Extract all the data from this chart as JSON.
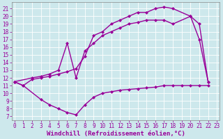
{
  "background_color": "#cde8ec",
  "grid_color": "#ffffff",
  "line_color": "#990099",
  "markersize": 2.5,
  "linewidth": 1.0,
  "xlabel": "Windchill (Refroidissement éolien,°C)",
  "xlabel_fontsize": 6.5,
  "xticks": [
    0,
    1,
    2,
    3,
    4,
    5,
    6,
    7,
    8,
    9,
    10,
    11,
    12,
    13,
    14,
    15,
    16,
    17,
    18,
    19,
    20,
    21,
    22,
    23
  ],
  "yticks": [
    7,
    8,
    9,
    10,
    11,
    12,
    13,
    14,
    15,
    16,
    17,
    18,
    19,
    20,
    21
  ],
  "ylim": [
    6.5,
    21.8
  ],
  "xlim": [
    -0.3,
    23.3
  ],
  "tick_fontsize": 5.5,
  "curve1_x": [
    0,
    1,
    2,
    3,
    4,
    5,
    6,
    7,
    8,
    9,
    10,
    11,
    12,
    13,
    14,
    15,
    16,
    17,
    18,
    20,
    21,
    22
  ],
  "curve1_y": [
    11.5,
    11.0,
    11.8,
    12.0,
    12.2,
    12.5,
    12.8,
    13.2,
    14.8,
    17.5,
    18.0,
    19.0,
    19.5,
    20.0,
    20.5,
    20.5,
    21.0,
    21.2,
    21.0,
    20.0,
    17.0,
    11.5
  ],
  "curve2_x": [
    0,
    1,
    3,
    4,
    5,
    6,
    7,
    8,
    9,
    10,
    11,
    12,
    13,
    14,
    15,
    16,
    17,
    18,
    19,
    20,
    21,
    22
  ],
  "curve2_y": [
    11.5,
    11.0,
    9.2,
    8.5,
    8.0,
    7.5,
    7.2,
    8.5,
    9.5,
    10.0,
    10.2,
    10.4,
    10.5,
    10.6,
    10.7,
    10.8,
    11.0,
    11.0,
    11.0,
    11.0,
    11.0,
    11.0
  ],
  "curve3_x": [
    0,
    2,
    3,
    4,
    5,
    6,
    7,
    8,
    9,
    10,
    11,
    12,
    13,
    14,
    15,
    16,
    17,
    18,
    20,
    21,
    22
  ],
  "curve3_y": [
    11.5,
    12.0,
    12.2,
    12.5,
    13.0,
    16.5,
    12.0,
    15.5,
    16.5,
    17.5,
    18.0,
    18.5,
    19.0,
    19.2,
    19.5,
    19.5,
    19.5,
    19.0,
    20.0,
    19.0,
    11.5
  ]
}
